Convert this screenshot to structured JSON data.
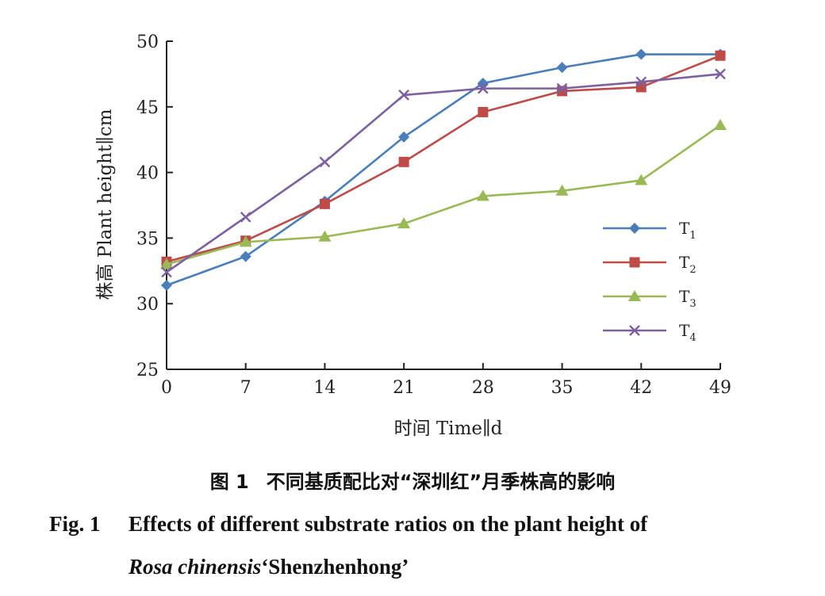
{
  "chart_data": {
    "type": "line",
    "xlabel": "时间 Time∥d",
    "ylabel": "株高 Plant height∥cm",
    "x": [
      0,
      7,
      14,
      21,
      28,
      35,
      42,
      49
    ],
    "xlim": [
      0,
      49
    ],
    "ylim": [
      25,
      50
    ],
    "yticks": [
      25,
      30,
      35,
      40,
      45,
      50
    ],
    "grid": false,
    "legend_position": "right",
    "series": [
      {
        "name": "T",
        "sub": "1",
        "marker": "diamond",
        "color": "#4a7ebb",
        "values": [
          31.4,
          33.6,
          37.8,
          42.7,
          46.8,
          48.0,
          49.0,
          49.0
        ]
      },
      {
        "name": "T",
        "sub": "2",
        "marker": "square",
        "color": "#be4b48",
        "values": [
          33.2,
          34.8,
          37.6,
          40.8,
          44.6,
          46.2,
          46.5,
          48.9
        ]
      },
      {
        "name": "T",
        "sub": "3",
        "marker": "triangle",
        "color": "#98b954",
        "values": [
          33.0,
          34.7,
          35.1,
          36.1,
          38.2,
          38.6,
          39.4,
          43.6
        ]
      },
      {
        "name": "T",
        "sub": "4",
        "marker": "x",
        "color": "#7d60a0",
        "values": [
          32.4,
          36.6,
          40.8,
          45.9,
          46.4,
          46.4,
          46.9,
          47.5
        ]
      }
    ]
  },
  "caption": {
    "cn_num": "图 1",
    "cn_text": "不同基质配比对“深圳红”月季株高的影响",
    "en_num": "Fig. 1",
    "en_line1": "Effects of different substrate ratios on the plant height of",
    "en_species": "Rosa chinensis",
    "en_cultivar": "‘Shenzhenhong’"
  }
}
